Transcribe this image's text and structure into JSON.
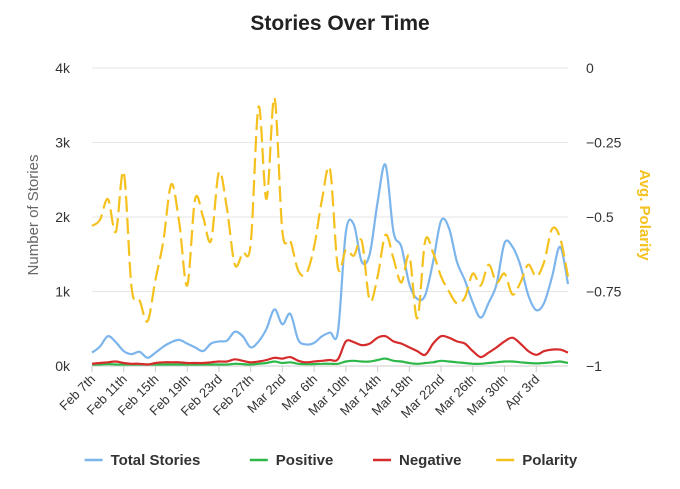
{
  "chart_data": {
    "type": "line",
    "title": "Stories Over Time",
    "x_tick_labels": [
      "Feb 7th",
      "Feb 11th",
      "Feb 15th",
      "Feb 19th",
      "Feb 23rd",
      "Feb 27th",
      "Mar 2nd",
      "Mar 6th",
      "Mar 10th",
      "Mar 14th",
      "Mar 18th",
      "Mar 22nd",
      "Mar 26th",
      "Mar 30th",
      "Apr 3rd"
    ],
    "x": [
      "Feb 7th",
      "",
      "",
      "",
      "Feb 11th",
      "",
      "",
      "",
      "Feb 15th",
      "",
      "",
      "",
      "Feb 19th",
      "",
      "",
      "",
      "Feb 23rd",
      "",
      "",
      "",
      "Feb 27th",
      "",
      "",
      "",
      "Mar 2nd",
      "",
      "",
      "",
      "Mar 6th",
      "",
      "",
      "",
      "Mar 10th",
      "",
      "",
      "",
      "Mar 14th",
      "",
      "",
      "",
      "Mar 18th",
      "",
      "",
      "",
      "Mar 22nd",
      "",
      "",
      "",
      "Mar 26th",
      "",
      "",
      "",
      "Mar 30th",
      "",
      "",
      "",
      "Apr 3rd",
      "",
      "",
      "",
      ""
    ],
    "y_left": {
      "label": "Number of Stories",
      "ylim": [
        0,
        4000
      ],
      "ticks": [
        "0k",
        "1k",
        "2k",
        "3k",
        "4k"
      ]
    },
    "y_right": {
      "label": "Avg. Polarity",
      "ylim": [
        -1,
        0
      ],
      "ticks": [
        "−1",
        "−0.75",
        "−0.5",
        "−0.25",
        "0"
      ]
    },
    "series": [
      {
        "name": "Total Stories",
        "axis": "left",
        "color": "#7cb5ec",
        "dashed": false,
        "values": [
          180,
          260,
          400,
          320,
          200,
          160,
          190,
          110,
          180,
          260,
          320,
          350,
          300,
          250,
          200,
          300,
          330,
          340,
          460,
          400,
          250,
          330,
          500,
          760,
          560,
          700,
          350,
          290,
          310,
          400,
          450,
          460,
          1800,
          1900,
          1400,
          1500,
          2200,
          2700,
          1800,
          1600,
          1100,
          900,
          950,
          1400,
          1950,
          1850,
          1400,
          1150,
          850,
          650,
          850,
          1100,
          1650,
          1600,
          1350,
          950,
          750,
          850,
          1200,
          1600,
          1100
        ]
      },
      {
        "name": "Positive",
        "axis": "left",
        "color": "#2fb84a",
        "dashed": false,
        "values": [
          20,
          20,
          25,
          20,
          20,
          20,
          20,
          20,
          20,
          20,
          20,
          20,
          20,
          20,
          20,
          20,
          20,
          20,
          30,
          25,
          20,
          30,
          40,
          60,
          40,
          50,
          30,
          25,
          25,
          30,
          30,
          30,
          60,
          70,
          60,
          60,
          80,
          100,
          70,
          60,
          40,
          30,
          40,
          50,
          70,
          60,
          50,
          40,
          30,
          30,
          40,
          50,
          60,
          60,
          50,
          40,
          35,
          40,
          50,
          60,
          40
        ]
      },
      {
        "name": "Negative",
        "axis": "left",
        "color": "#d62c2c",
        "dashed": false,
        "values": [
          30,
          40,
          50,
          60,
          40,
          30,
          30,
          20,
          40,
          50,
          50,
          50,
          40,
          40,
          40,
          50,
          60,
          60,
          90,
          70,
          50,
          60,
          80,
          110,
          100,
          120,
          70,
          50,
          60,
          70,
          80,
          90,
          330,
          320,
          280,
          300,
          380,
          400,
          330,
          300,
          250,
          200,
          150,
          300,
          400,
          380,
          330,
          300,
          200,
          120,
          180,
          250,
          330,
          380,
          300,
          200,
          150,
          200,
          220,
          220,
          180
        ]
      },
      {
        "name": "Polarity",
        "axis": "right",
        "color": "#f5c11e",
        "dashed": true,
        "values": [
          -0.53,
          -0.51,
          -0.44,
          -0.55,
          -0.35,
          -0.74,
          -0.78,
          -0.85,
          -0.71,
          -0.58,
          -0.39,
          -0.52,
          -0.73,
          -0.44,
          -0.5,
          -0.58,
          -0.35,
          -0.47,
          -0.66,
          -0.62,
          -0.59,
          -0.13,
          -0.44,
          -0.1,
          -0.55,
          -0.58,
          -0.68,
          -0.69,
          -0.6,
          -0.44,
          -0.34,
          -0.67,
          -0.61,
          -0.63,
          -0.58,
          -0.78,
          -0.7,
          -0.56,
          -0.64,
          -0.72,
          -0.63,
          -0.84,
          -0.58,
          -0.62,
          -0.7,
          -0.75,
          -0.79,
          -0.77,
          -0.69,
          -0.73,
          -0.66,
          -0.72,
          -0.69,
          -0.76,
          -0.72,
          -0.66,
          -0.7,
          -0.65,
          -0.54,
          -0.57,
          -0.7
        ]
      }
    ],
    "legend": {
      "placement": "bottom-center",
      "items": [
        "Total Stories",
        "Positive",
        "Negative",
        "Polarity"
      ]
    },
    "grid": true
  }
}
